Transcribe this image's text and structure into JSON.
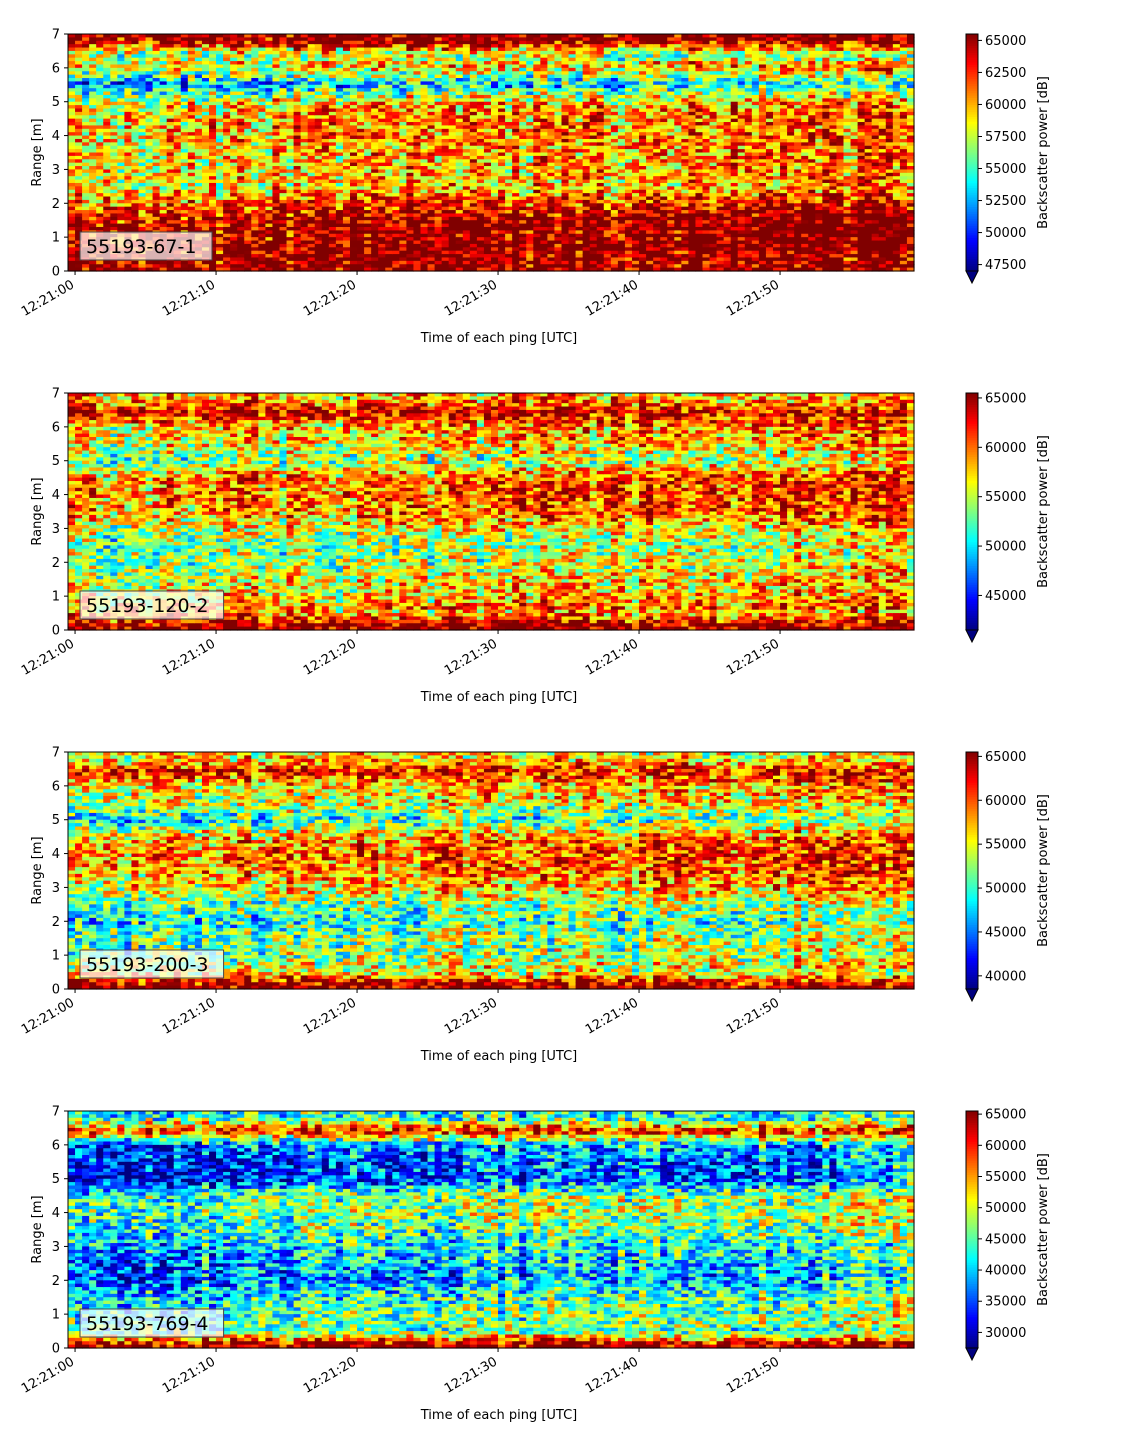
{
  "chart_data": [
    {
      "type": "heatmap",
      "label": "55193-67-1",
      "xlabel": "Time of each ping [UTC]",
      "ylabel": "Range [m]",
      "colorbar_label": "Backscatter power [dB]",
      "colormap": "jet",
      "xlim": [
        "12:20:59.5",
        "12:21:59.5"
      ],
      "xticks": [
        "12:21:00",
        "12:21:10",
        "12:21:20",
        "12:21:30",
        "12:21:40",
        "12:21:50"
      ],
      "ylim": [
        0,
        7
      ],
      "yticks": [
        "0",
        "1",
        "2",
        "3",
        "4",
        "5",
        "6",
        "7"
      ],
      "clim": [
        47000,
        65500
      ],
      "colorbar_ticks": [
        "47500",
        "50000",
        "52500",
        "55000",
        "57500",
        "60000",
        "62500",
        "65000"
      ],
      "colorbar_extend": "min",
      "range_profile": [
        {
          "range": 0.1,
          "level": 0.99
        },
        {
          "range": 0.5,
          "level": 0.97
        },
        {
          "range": 1.0,
          "level": 0.9
        },
        {
          "range": 1.5,
          "level": 0.92
        },
        {
          "range": 2.0,
          "level": 0.75
        },
        {
          "range": 2.5,
          "level": 0.6
        },
        {
          "range": 3.0,
          "level": 0.62
        },
        {
          "range": 3.5,
          "level": 0.64
        },
        {
          "range": 4.0,
          "level": 0.66
        },
        {
          "range": 4.5,
          "level": 0.66
        },
        {
          "range": 5.0,
          "level": 0.6
        },
        {
          "range": 5.5,
          "level": 0.25
        },
        {
          "range": 6.0,
          "level": 0.6
        },
        {
          "range": 6.4,
          "level": 0.55
        },
        {
          "range": 6.8,
          "level": 0.99
        }
      ]
    },
    {
      "type": "heatmap",
      "label": "55193-120-2",
      "xlabel": "Time of each ping [UTC]",
      "ylabel": "Range [m]",
      "colorbar_label": "Backscatter power [dB]",
      "colormap": "jet",
      "xlim": [
        "12:20:59.5",
        "12:21:59.5"
      ],
      "xticks": [
        "12:21:00",
        "12:21:10",
        "12:21:20",
        "12:21:30",
        "12:21:40",
        "12:21:50"
      ],
      "ylim": [
        0,
        7
      ],
      "yticks": [
        "0",
        "1",
        "2",
        "3",
        "4",
        "5",
        "6",
        "7"
      ],
      "clim": [
        41500,
        65500
      ],
      "colorbar_ticks": [
        "45000",
        "50000",
        "55000",
        "60000",
        "65000"
      ],
      "colorbar_extend": "min",
      "range_profile": [
        {
          "range": 0.1,
          "level": 0.99
        },
        {
          "range": 0.5,
          "level": 0.7
        },
        {
          "range": 1.0,
          "level": 0.6
        },
        {
          "range": 1.5,
          "level": 0.55
        },
        {
          "range": 2.0,
          "level": 0.5
        },
        {
          "range": 2.5,
          "level": 0.45
        },
        {
          "range": 3.0,
          "level": 0.55
        },
        {
          "range": 3.5,
          "level": 0.7
        },
        {
          "range": 4.0,
          "level": 0.72
        },
        {
          "range": 4.5,
          "level": 0.7
        },
        {
          "range": 5.0,
          "level": 0.45
        },
        {
          "range": 5.5,
          "level": 0.6
        },
        {
          "range": 6.0,
          "level": 0.62
        },
        {
          "range": 6.4,
          "level": 0.95
        },
        {
          "range": 6.8,
          "level": 0.7
        }
      ]
    },
    {
      "type": "heatmap",
      "label": "55193-200-3",
      "xlabel": "Time of each ping [UTC]",
      "ylabel": "Range [m]",
      "colorbar_label": "Backscatter power [dB]",
      "colormap": "jet",
      "xlim": [
        "12:20:59.5",
        "12:21:59.5"
      ],
      "xticks": [
        "12:21:00",
        "12:21:10",
        "12:21:20",
        "12:21:30",
        "12:21:40",
        "12:21:50"
      ],
      "ylim": [
        0,
        7
      ],
      "yticks": [
        "0",
        "1",
        "2",
        "3",
        "4",
        "5",
        "6",
        "7"
      ],
      "clim": [
        38500,
        65500
      ],
      "colorbar_ticks": [
        "40000",
        "45000",
        "50000",
        "55000",
        "60000",
        "65000"
      ],
      "colorbar_extend": "min",
      "range_profile": [
        {
          "range": 0.1,
          "level": 0.99
        },
        {
          "range": 0.5,
          "level": 0.6
        },
        {
          "range": 1.0,
          "level": 0.45
        },
        {
          "range": 1.5,
          "level": 0.45
        },
        {
          "range": 2.0,
          "level": 0.35
        },
        {
          "range": 2.5,
          "level": 0.45
        },
        {
          "range": 3.0,
          "level": 0.6
        },
        {
          "range": 3.5,
          "level": 0.7
        },
        {
          "range": 4.0,
          "level": 0.72
        },
        {
          "range": 4.5,
          "level": 0.65
        },
        {
          "range": 5.0,
          "level": 0.35
        },
        {
          "range": 5.5,
          "level": 0.55
        },
        {
          "range": 6.0,
          "level": 0.6
        },
        {
          "range": 6.4,
          "level": 0.9
        },
        {
          "range": 6.8,
          "level": 0.65
        }
      ]
    },
    {
      "type": "heatmap",
      "label": "55193-769-4",
      "xlabel": "Time of each ping [UTC]",
      "ylabel": "Range [m]",
      "colorbar_label": "Backscatter power [dB]",
      "colormap": "jet",
      "xlim": [
        "12:20:59.5",
        "12:21:59.5"
      ],
      "xticks": [
        "12:21:00",
        "12:21:10",
        "12:21:20",
        "12:21:30",
        "12:21:40",
        "12:21:50"
      ],
      "ylim": [
        0,
        7
      ],
      "yticks": [
        "0",
        "1",
        "2",
        "3",
        "4",
        "5",
        "6",
        "7"
      ],
      "clim": [
        27500,
        65500
      ],
      "colorbar_ticks": [
        "30000",
        "35000",
        "40000",
        "45000",
        "50000",
        "55000",
        "60000",
        "65000"
      ],
      "colorbar_extend": "min",
      "range_profile": [
        {
          "range": 0.1,
          "level": 0.99
        },
        {
          "range": 0.5,
          "level": 0.45
        },
        {
          "range": 1.0,
          "level": 0.4
        },
        {
          "range": 1.5,
          "level": 0.35
        },
        {
          "range": 2.0,
          "level": 0.2
        },
        {
          "range": 2.5,
          "level": 0.25
        },
        {
          "range": 3.0,
          "level": 0.3
        },
        {
          "range": 3.5,
          "level": 0.4
        },
        {
          "range": 4.0,
          "level": 0.45
        },
        {
          "range": 4.5,
          "level": 0.42
        },
        {
          "range": 5.0,
          "level": 0.12
        },
        {
          "range": 5.5,
          "level": 0.15
        },
        {
          "range": 6.0,
          "level": 0.2
        },
        {
          "range": 6.4,
          "level": 0.9
        },
        {
          "range": 6.8,
          "level": 0.4
        }
      ]
    }
  ]
}
